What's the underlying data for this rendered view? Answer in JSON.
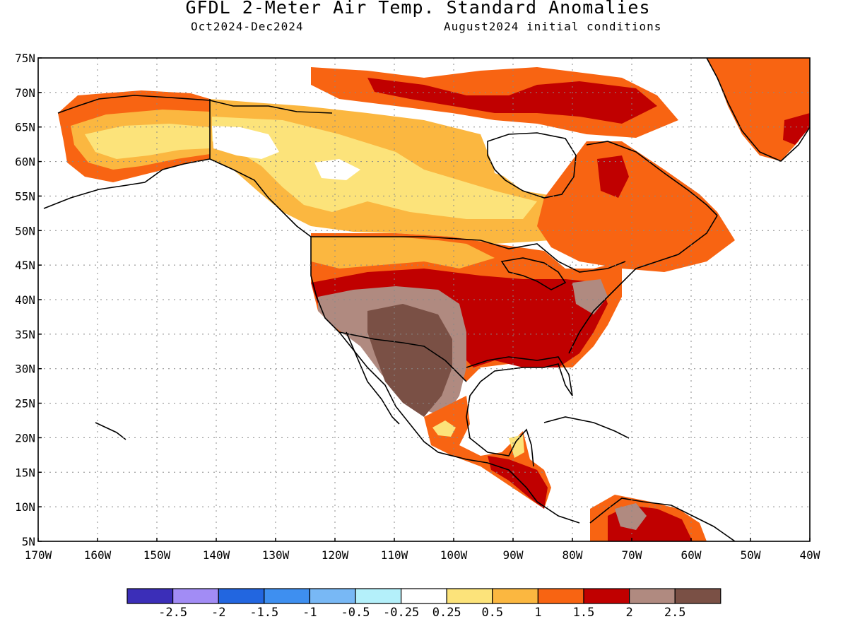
{
  "title": "GFDL 2-Meter Air Temp. Standard Anomalies",
  "subtitle_left": "Oct2024-Dec2024",
  "subtitle_right": "August2024 initial conditions",
  "map": {
    "projection": "equirectangular",
    "lon_range": [
      -170,
      -40
    ],
    "lat_range": [
      5,
      75
    ],
    "grid": true,
    "lat_ticks": [
      "5N",
      "10N",
      "15N",
      "20N",
      "25N",
      "30N",
      "35N",
      "40N",
      "45N",
      "50N",
      "55N",
      "60N",
      "65N",
      "70N",
      "75N"
    ],
    "lon_ticks": [
      "170W",
      "160W",
      "150W",
      "140W",
      "130W",
      "120W",
      "110W",
      "100W",
      "90W",
      "80W",
      "70W",
      "60W",
      "50W",
      "40W"
    ]
  },
  "colorbar": {
    "colors": [
      "#3b2eb8",
      "#a28cf5",
      "#2266e0",
      "#3e8ff0",
      "#78b8f5",
      "#b4f0fa",
      "#ffffff",
      "#fce37a",
      "#fbb740",
      "#f86412",
      "#c00000",
      "#b08a80",
      "#7a5045"
    ],
    "labels": [
      "-2.5",
      "-2",
      "-1.5",
      "-1",
      "-0.5",
      "-0.25",
      "0.25",
      "0.5",
      "1",
      "1.5",
      "2",
      "2.5"
    ]
  },
  "regions": [
    {
      "name": "Alaska interior",
      "level": "0.5",
      "color": "#fce37a"
    },
    {
      "name": "Northern Canada",
      "level": "0.25 to 0.5",
      "color": "#fce37a"
    },
    {
      "name": "Southwest US and Northern Mexico",
      "level": "2.5",
      "color": "#7a5045"
    },
    {
      "name": "Central and Eastern US",
      "level": "2",
      "color": "#c00000"
    },
    {
      "name": "Greenland",
      "level": "1.5",
      "color": "#f86412"
    }
  ]
}
